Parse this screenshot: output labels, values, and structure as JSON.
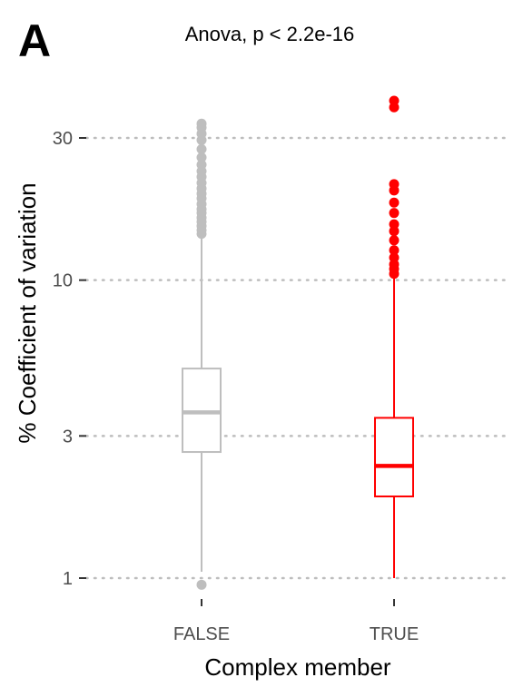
{
  "panel_label": "A",
  "chart_data": {
    "type": "boxplot",
    "title": "Anova, p < 2.2e-16",
    "xlabel": "Complex member",
    "ylabel": "% Coefficient of variation",
    "yscale": "log10",
    "ylim": [
      0.94,
      44
    ],
    "yticks": [
      1,
      3,
      10,
      30
    ],
    "ytick_labels": [
      "1",
      "3",
      "10",
      "30"
    ],
    "grid": "horizontal dotted at major ticks",
    "categories": [
      "FALSE",
      "TRUE"
    ],
    "series": [
      {
        "category": "FALSE",
        "color": "#bebebe",
        "whisker_low": 1.05,
        "q1": 2.65,
        "median": 3.6,
        "q3": 5.05,
        "whisker_high": 14.0,
        "outliers": [
          0.95,
          14.3,
          14.7,
          15.2,
          15.7,
          16.2,
          16.8,
          17.3,
          18.0,
          18.8,
          19.5,
          20.3,
          21.2,
          22.2,
          23.2,
          24.4,
          25.8,
          27.5,
          29.5,
          31.0,
          32.5,
          33.5
        ]
      },
      {
        "category": "TRUE",
        "color": "#ff0000",
        "whisker_low": 1.0,
        "q1": 1.88,
        "median": 2.38,
        "q3": 3.45,
        "whisker_high": 10.2,
        "outliers": [
          10.5,
          10.9,
          11.3,
          11.9,
          12.6,
          13.6,
          14.6,
          15.4,
          16.8,
          18.2,
          20.0,
          21.0,
          38.0,
          40.0
        ]
      }
    ]
  }
}
